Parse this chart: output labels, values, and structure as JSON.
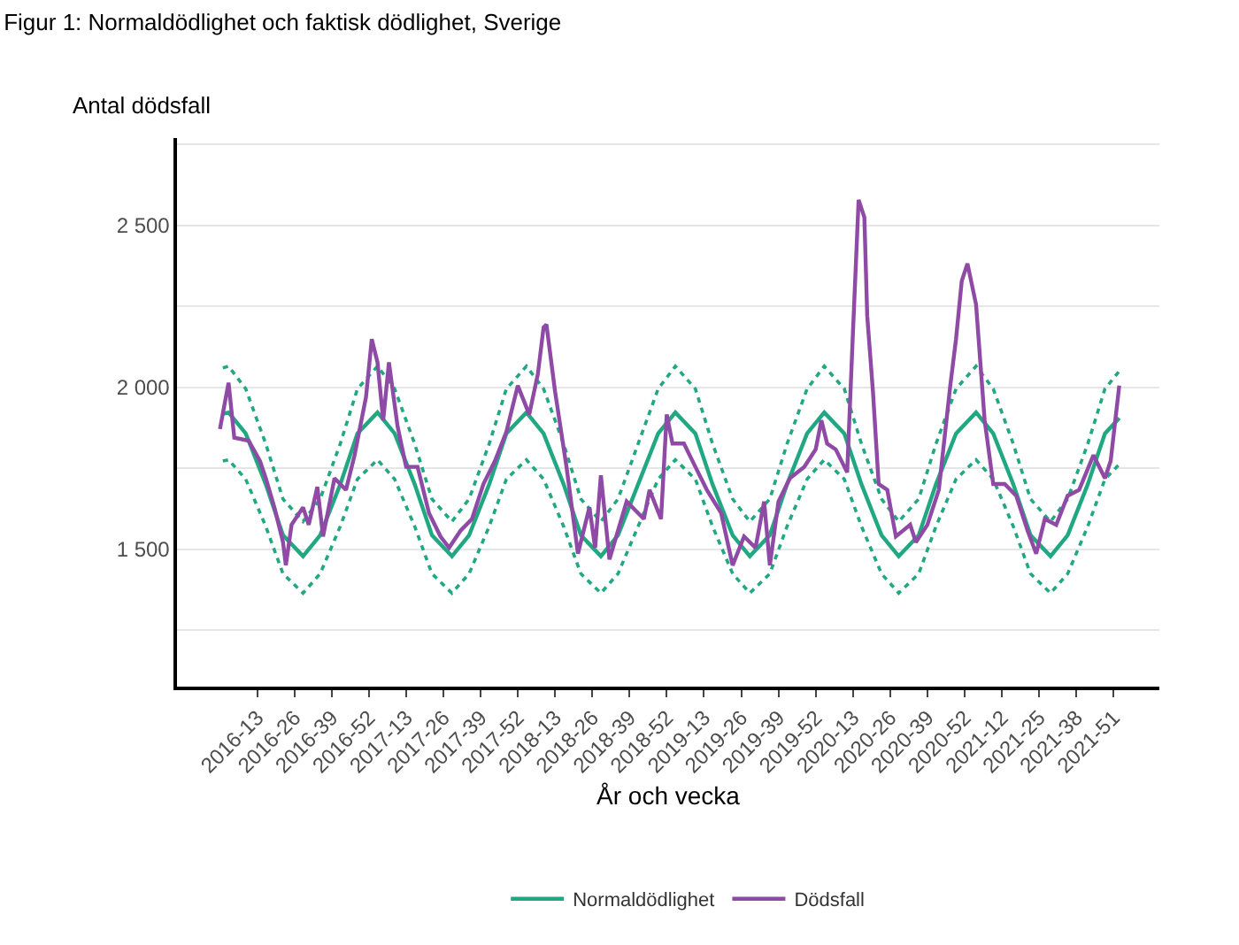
{
  "chart_data": {
    "type": "line",
    "title": "Figur 1: Normaldödlighet och faktisk dödlighet, Sverige",
    "xlabel": "År och vecka",
    "ylabel": "Antal dödsfall",
    "xlim": [
      "2015-09-14",
      "2022-04-11"
    ],
    "xticks": [
      {
        "value": "2016-03-28",
        "label": "2016-13"
      },
      {
        "value": "2016-06-27",
        "label": "2016-26"
      },
      {
        "value": "2016-09-26",
        "label": "2016-39"
      },
      {
        "value": "2016-12-26",
        "label": "2016-52"
      },
      {
        "value": "2017-03-27",
        "label": "2017-13"
      },
      {
        "value": "2017-06-26",
        "label": "2017-26"
      },
      {
        "value": "2017-09-25",
        "label": "2017-39"
      },
      {
        "value": "2017-12-25",
        "label": "2017-52"
      },
      {
        "value": "2018-03-26",
        "label": "2018-13"
      },
      {
        "value": "2018-06-25",
        "label": "2018-26"
      },
      {
        "value": "2018-09-24",
        "label": "2018-39"
      },
      {
        "value": "2018-12-24",
        "label": "2018-52"
      },
      {
        "value": "2019-03-25",
        "label": "2019-13"
      },
      {
        "value": "2019-06-24",
        "label": "2019-26"
      },
      {
        "value": "2019-09-23",
        "label": "2019-39"
      },
      {
        "value": "2019-12-23",
        "label": "2019-52"
      },
      {
        "value": "2020-03-23",
        "label": "2020-13"
      },
      {
        "value": "2020-06-22",
        "label": "2020-26"
      },
      {
        "value": "2020-09-21",
        "label": "2020-39"
      },
      {
        "value": "2020-12-21",
        "label": "2020-52"
      },
      {
        "value": "2021-03-22",
        "label": "2021-12"
      },
      {
        "value": "2021-06-21",
        "label": "2021-25"
      },
      {
        "value": "2021-09-20",
        "label": "2021-38"
      },
      {
        "value": "2021-12-20",
        "label": "2021-51"
      }
    ],
    "ylim": [
      1075,
      2770
    ],
    "yticks": [
      {
        "value": 1250,
        "label": null
      },
      {
        "value": 1500,
        "label": "1 500"
      },
      {
        "value": 1750,
        "label": null
      },
      {
        "value": 2000,
        "label": "2 000"
      },
      {
        "value": 2250,
        "label": null
      },
      {
        "value": 2500,
        "label": "2 500"
      },
      {
        "value": 2750,
        "label": null
      }
    ],
    "grid": "y",
    "legend": "bottom",
    "marker": "none",
    "x": [
      "2016-01-04",
      "2016-01-18",
      "2016-02-29",
      "2016-04-18",
      "2016-05-30",
      "2016-07-18",
      "2016-08-29",
      "2016-10-17",
      "2016-11-28",
      "2017-01-16",
      "2017-02-27",
      "2017-04-17",
      "2017-05-29",
      "2017-07-17",
      "2017-08-28",
      "2017-10-16",
      "2017-11-27",
      "2018-01-15",
      "2018-02-26",
      "2018-04-16",
      "2018-05-28",
      "2018-07-16",
      "2018-08-27",
      "2018-10-15",
      "2018-12-03",
      "2019-01-14",
      "2019-03-04",
      "2019-04-15",
      "2019-06-03",
      "2019-07-15",
      "2019-09-02",
      "2019-10-14",
      "2019-12-02",
      "2020-01-13",
      "2020-03-02",
      "2020-04-13",
      "2020-06-01",
      "2020-07-13",
      "2020-08-31",
      "2020-10-12",
      "2020-11-30",
      "2021-01-18",
      "2021-03-01",
      "2021-04-19",
      "2021-05-31",
      "2021-07-19",
      "2021-08-30",
      "2021-10-18",
      "2021-11-29",
      "2022-01-03"
    ],
    "series": [
      {
        "line_style": "dotted",
        "color": "#21a883",
        "values": [
          2060,
          2065,
          1995,
          1825,
          1655,
          1585,
          1655,
          1825,
          1995,
          2065,
          1995,
          1825,
          1655,
          1585,
          1655,
          1825,
          1995,
          2065,
          1995,
          1825,
          1655,
          1585,
          1655,
          1825,
          1995,
          2065,
          1995,
          1825,
          1655,
          1585,
          1655,
          1825,
          1995,
          2065,
          1995,
          1825,
          1655,
          1585,
          1655,
          1825,
          1995,
          2065,
          1995,
          1825,
          1655,
          1585,
          1655,
          1825,
          1995,
          2050
        ]
      },
      {
        "line_style": "dotted",
        "color": "#21a883",
        "values": [
          1772,
          1776,
          1716,
          1570,
          1424,
          1364,
          1424,
          1570,
          1716,
          1776,
          1716,
          1570,
          1424,
          1364,
          1424,
          1570,
          1716,
          1776,
          1716,
          1570,
          1424,
          1364,
          1424,
          1570,
          1716,
          1776,
          1716,
          1570,
          1424,
          1364,
          1424,
          1570,
          1716,
          1776,
          1716,
          1570,
          1424,
          1364,
          1424,
          1570,
          1716,
          1776,
          1716,
          1570,
          1424,
          1364,
          1424,
          1570,
          1716,
          1762
        ]
      },
      {
        "name": "Normaldödlighet",
        "line_style": "solid",
        "color": "#21a883",
        "values": [
          1918,
          1922,
          1857,
          1700,
          1543,
          1478,
          1543,
          1700,
          1857,
          1922,
          1857,
          1700,
          1543,
          1478,
          1543,
          1700,
          1857,
          1922,
          1857,
          1700,
          1543,
          1478,
          1543,
          1700,
          1857,
          1922,
          1857,
          1700,
          1543,
          1478,
          1543,
          1700,
          1857,
          1922,
          1857,
          1700,
          1543,
          1478,
          1543,
          1700,
          1857,
          1922,
          1857,
          1700,
          1543,
          1478,
          1543,
          1700,
          1857,
          1905
        ]
      },
      {
        "name": "Dödsfall",
        "line_style": "solid",
        "color": "#8e4aa5",
        "x": [
          "2015-12-28",
          "2016-01-18",
          "2016-02-01",
          "2016-03-07",
          "2016-04-04",
          "2016-04-18",
          "2016-05-09",
          "2016-05-30",
          "2016-06-06",
          "2016-06-20",
          "2016-07-18",
          "2016-08-01",
          "2016-08-22",
          "2016-09-05",
          "2016-10-03",
          "2016-10-31",
          "2016-11-21",
          "2016-12-19",
          "2017-01-02",
          "2017-01-16",
          "2017-01-30",
          "2017-02-13",
          "2017-03-06",
          "2017-03-27",
          "2017-04-24",
          "2017-05-22",
          "2017-06-19",
          "2017-07-10",
          "2017-08-07",
          "2017-09-04",
          "2017-10-02",
          "2017-10-30",
          "2017-11-27",
          "2017-12-25",
          "2018-01-22",
          "2018-02-12",
          "2018-02-26",
          "2018-03-05",
          "2018-03-26",
          "2018-04-23",
          "2018-05-21",
          "2018-06-18",
          "2018-07-02",
          "2018-07-16",
          "2018-08-06",
          "2018-09-17",
          "2018-10-29",
          "2018-11-12",
          "2018-12-10",
          "2018-12-24",
          "2019-01-07",
          "2019-02-04",
          "2019-03-04",
          "2019-04-01",
          "2019-05-06",
          "2019-06-03",
          "2019-07-01",
          "2019-07-29",
          "2019-08-19",
          "2019-09-02",
          "2019-09-23",
          "2019-10-21",
          "2019-11-25",
          "2019-12-23",
          "2020-01-06",
          "2020-01-20",
          "2020-02-10",
          "2020-03-09",
          "2020-03-23",
          "2020-04-06",
          "2020-04-20",
          "2020-04-27",
          "2020-05-11",
          "2020-05-25",
          "2020-06-15",
          "2020-07-06",
          "2020-08-10",
          "2020-08-24",
          "2020-09-21",
          "2020-10-19",
          "2020-11-16",
          "2020-11-30",
          "2020-12-14",
          "2020-12-28",
          "2021-01-18",
          "2021-02-08",
          "2021-03-01",
          "2021-03-29",
          "2021-04-26",
          "2021-05-24",
          "2021-06-14",
          "2021-07-05",
          "2021-08-02",
          "2021-08-30",
          "2021-09-27",
          "2021-11-01",
          "2021-11-29",
          "2021-12-13",
          "2022-01-03"
        ],
        "values": [
          1871,
          2014,
          1844,
          1835,
          1772,
          1719,
          1629,
          1522,
          1450,
          1575,
          1629,
          1575,
          1692,
          1539,
          1719,
          1683,
          1790,
          1970,
          2149,
          2077,
          1898,
          2077,
          1880,
          1754,
          1754,
          1611,
          1539,
          1504,
          1557,
          1593,
          1701,
          1772,
          1862,
          2005,
          1916,
          2041,
          2185,
          2194,
          1987,
          1754,
          1486,
          1629,
          1504,
          1728,
          1468,
          1647,
          1593,
          1683,
          1593,
          1916,
          1826,
          1826,
          1754,
          1683,
          1611,
          1450,
          1539,
          1504,
          1647,
          1450,
          1647,
          1719,
          1754,
          1808,
          1898,
          1826,
          1808,
          1737,
          2167,
          2579,
          2525,
          2220,
          1987,
          1701,
          1683,
          1539,
          1575,
          1521,
          1575,
          1683,
          2005,
          2149,
          2328,
          2382,
          2256,
          1898,
          1701,
          1701,
          1665,
          1557,
          1486,
          1593,
          1575,
          1665,
          1683,
          1790,
          1719,
          1772,
          2005
        ]
      }
    ]
  }
}
